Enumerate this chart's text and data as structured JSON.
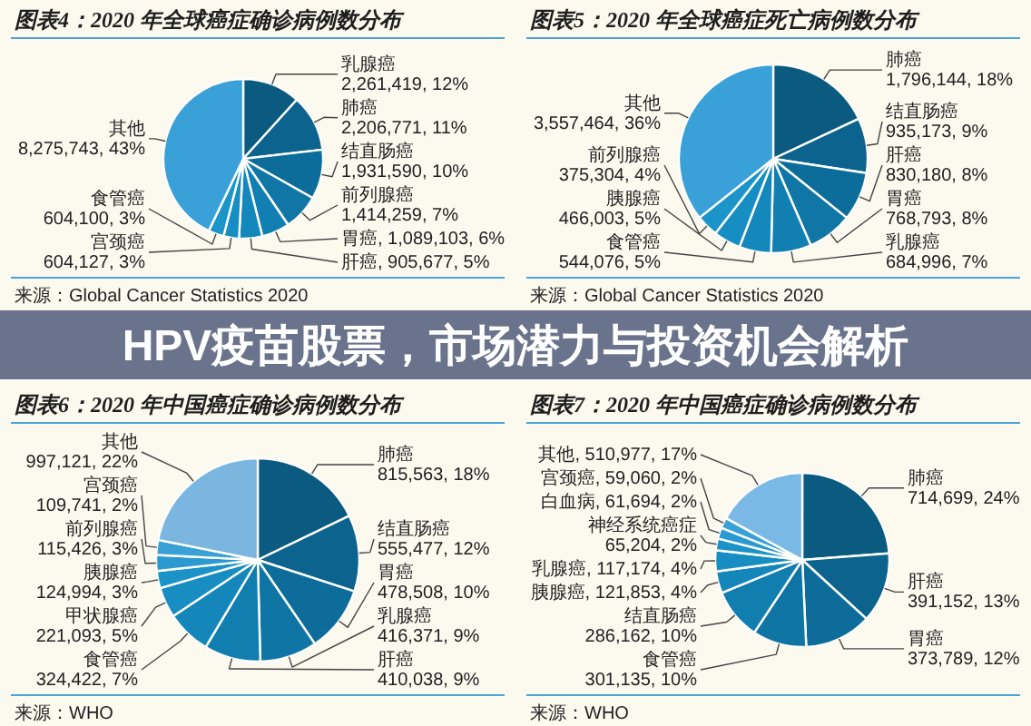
{
  "chart_data": [
    {
      "type": "pie",
      "title": "图表4：2020 年全球癌症确诊病例数分布",
      "categories": [
        "乳腺癌",
        "肺癌",
        "结直肠癌",
        "前列腺癌",
        "胃癌",
        "肝癌",
        "宫颈癌",
        "食管癌",
        "其他"
      ],
      "values": [
        2261419,
        2206771,
        1931590,
        1414259,
        1089103,
        905677,
        604127,
        604100,
        8275743
      ],
      "value_labels": [
        "2,261,419, 12%",
        "2,206,771, 11%",
        "1,931,590, 10%",
        "1,414,259, 7%",
        "1,089,103, 6%",
        "905,677, 5%",
        "604,127, 3%",
        "604,100, 3%",
        "8,275,743, 43%"
      ],
      "colors": [
        "#0b5a80",
        "#0c648e",
        "#0d6d9a",
        "#0f76a6",
        "#117fb1",
        "#1487bb",
        "#178ec3",
        "#1b94c9",
        "#3aa0d8"
      ],
      "annotations": [
        "来源：Global Cancer Statistics 2020"
      ]
    },
    {
      "type": "pie",
      "title": "图表5：2020 年全球癌症死亡病例数分布",
      "categories": [
        "肺癌",
        "结直肠癌",
        "肝癌",
        "胃癌",
        "乳腺癌",
        "食管癌",
        "胰腺癌",
        "前列腺癌",
        "其他"
      ],
      "values": [
        1796144,
        935173,
        830180,
        768793,
        684996,
        544076,
        466003,
        375304,
        3557464
      ],
      "value_labels": [
        "1,796,144, 18%",
        "935,173, 9%",
        "830,180, 8%",
        "768,793, 8%",
        "684,996, 7%",
        "544,076, 5%",
        "466,003, 5%",
        "375,304, 4%",
        "3,557,464, 36%"
      ],
      "colors": [
        "#0b5a80",
        "#0c648e",
        "#0d6d9a",
        "#0f76a6",
        "#117fb1",
        "#1487bb",
        "#178ec3",
        "#1b94c9",
        "#3aa0d8"
      ],
      "annotations": [
        "来源：Global Cancer Statistics 2020"
      ]
    },
    {
      "type": "other",
      "title": "HPV疫苗股票，市场潜力与投资机会解析"
    },
    {
      "type": "pie",
      "title": "图表6：2020 年中国癌症确诊病例数分布",
      "categories": [
        "肺癌",
        "结直肠癌",
        "胃癌",
        "乳腺癌",
        "肝癌",
        "食管癌",
        "甲状腺癌",
        "胰腺癌",
        "前列腺癌",
        "宫颈癌",
        "其他"
      ],
      "values": [
        815563,
        555477,
        478508,
        416371,
        410038,
        324422,
        221093,
        124994,
        115426,
        109741,
        997121
      ],
      "value_labels": [
        "815,563, 18%",
        "555,477, 12%",
        "478,508, 10%",
        "416,371, 9%",
        "410,038, 9%",
        "324,422, 7%",
        "221,093, 5%",
        "124,994, 3%",
        "115,426, 3%",
        "109,741, 2%",
        "997,121, 22%"
      ],
      "colors": [
        "#0b5a80",
        "#0c638d",
        "#0d6c99",
        "#0f75a5",
        "#117eb0",
        "#1486ba",
        "#178dc2",
        "#1b93c8",
        "#2a9ad0",
        "#3aa1d7",
        "#7ab6e0"
      ],
      "annotations": [
        "来源：WHO"
      ]
    },
    {
      "type": "pie",
      "title": "图表7：2020 年中国癌症确诊病例数分布",
      "categories": [
        "肺癌",
        "肝癌",
        "胃癌",
        "食管癌",
        "结直肠癌",
        "胰腺癌",
        "乳腺癌",
        "神经系统癌症",
        "白血病",
        "宫颈癌",
        "其他"
      ],
      "values": [
        714699,
        391152,
        373789,
        301135,
        286162,
        121853,
        117174,
        65204,
        61694,
        59060,
        510977
      ],
      "value_labels": [
        "714,699, 24%",
        "391,152, 13%",
        "373,789, 12%",
        "301,135, 10%",
        "286,162, 10%",
        "121,853, 4%",
        "117,174, 4%",
        "65,204, 2%",
        "61,694, 2%",
        "59,060, 2%",
        "510,977, 17%"
      ],
      "colors": [
        "#0b5a80",
        "#0c638d",
        "#0d6c99",
        "#0f75a5",
        "#117eb0",
        "#1486ba",
        "#178dc2",
        "#1b93c8",
        "#2a9ad0",
        "#3aa1d7",
        "#7ab8e6"
      ],
      "annotations": [
        "来源：WHO"
      ]
    }
  ]
}
